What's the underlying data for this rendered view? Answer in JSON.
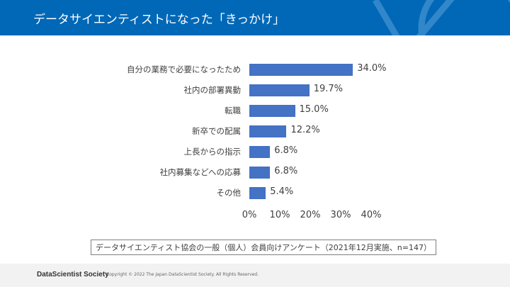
{
  "header": {
    "title": "データサイエンティストになった「きっかけ」"
  },
  "chart_data": {
    "type": "bar",
    "orientation": "horizontal",
    "categories": [
      "自分の業務で必要になったため",
      "社内の部署異動",
      "転職",
      "新卒での配属",
      "上長からの指示",
      "社内募集などへの応募",
      "その他"
    ],
    "values": [
      34.0,
      19.7,
      15.0,
      12.2,
      6.8,
      6.8,
      5.4
    ],
    "value_labels": [
      "34.0%",
      "19.7%",
      "15.0%",
      "12.2%",
      "6.8%",
      "6.8%",
      "5.4%"
    ],
    "xlim": [
      0,
      40
    ],
    "ticks": [
      "0%",
      "10%",
      "20%",
      "30%",
      "40%"
    ],
    "tick_values": [
      0,
      10,
      20,
      30,
      40
    ],
    "grid": false,
    "bar_color": "#4472c4"
  },
  "note": "データサイエンティスト協会の一般（個人）会員向けアンケート（2021年12月実施、n=147）",
  "footer": {
    "brand": "DataScientist Society",
    "copyright": "Copyright © 2022  The Japan DataScientist Society. All Rights Reserved."
  },
  "colors": {
    "header": "#0068b7",
    "footer": "#f2f2f2"
  }
}
